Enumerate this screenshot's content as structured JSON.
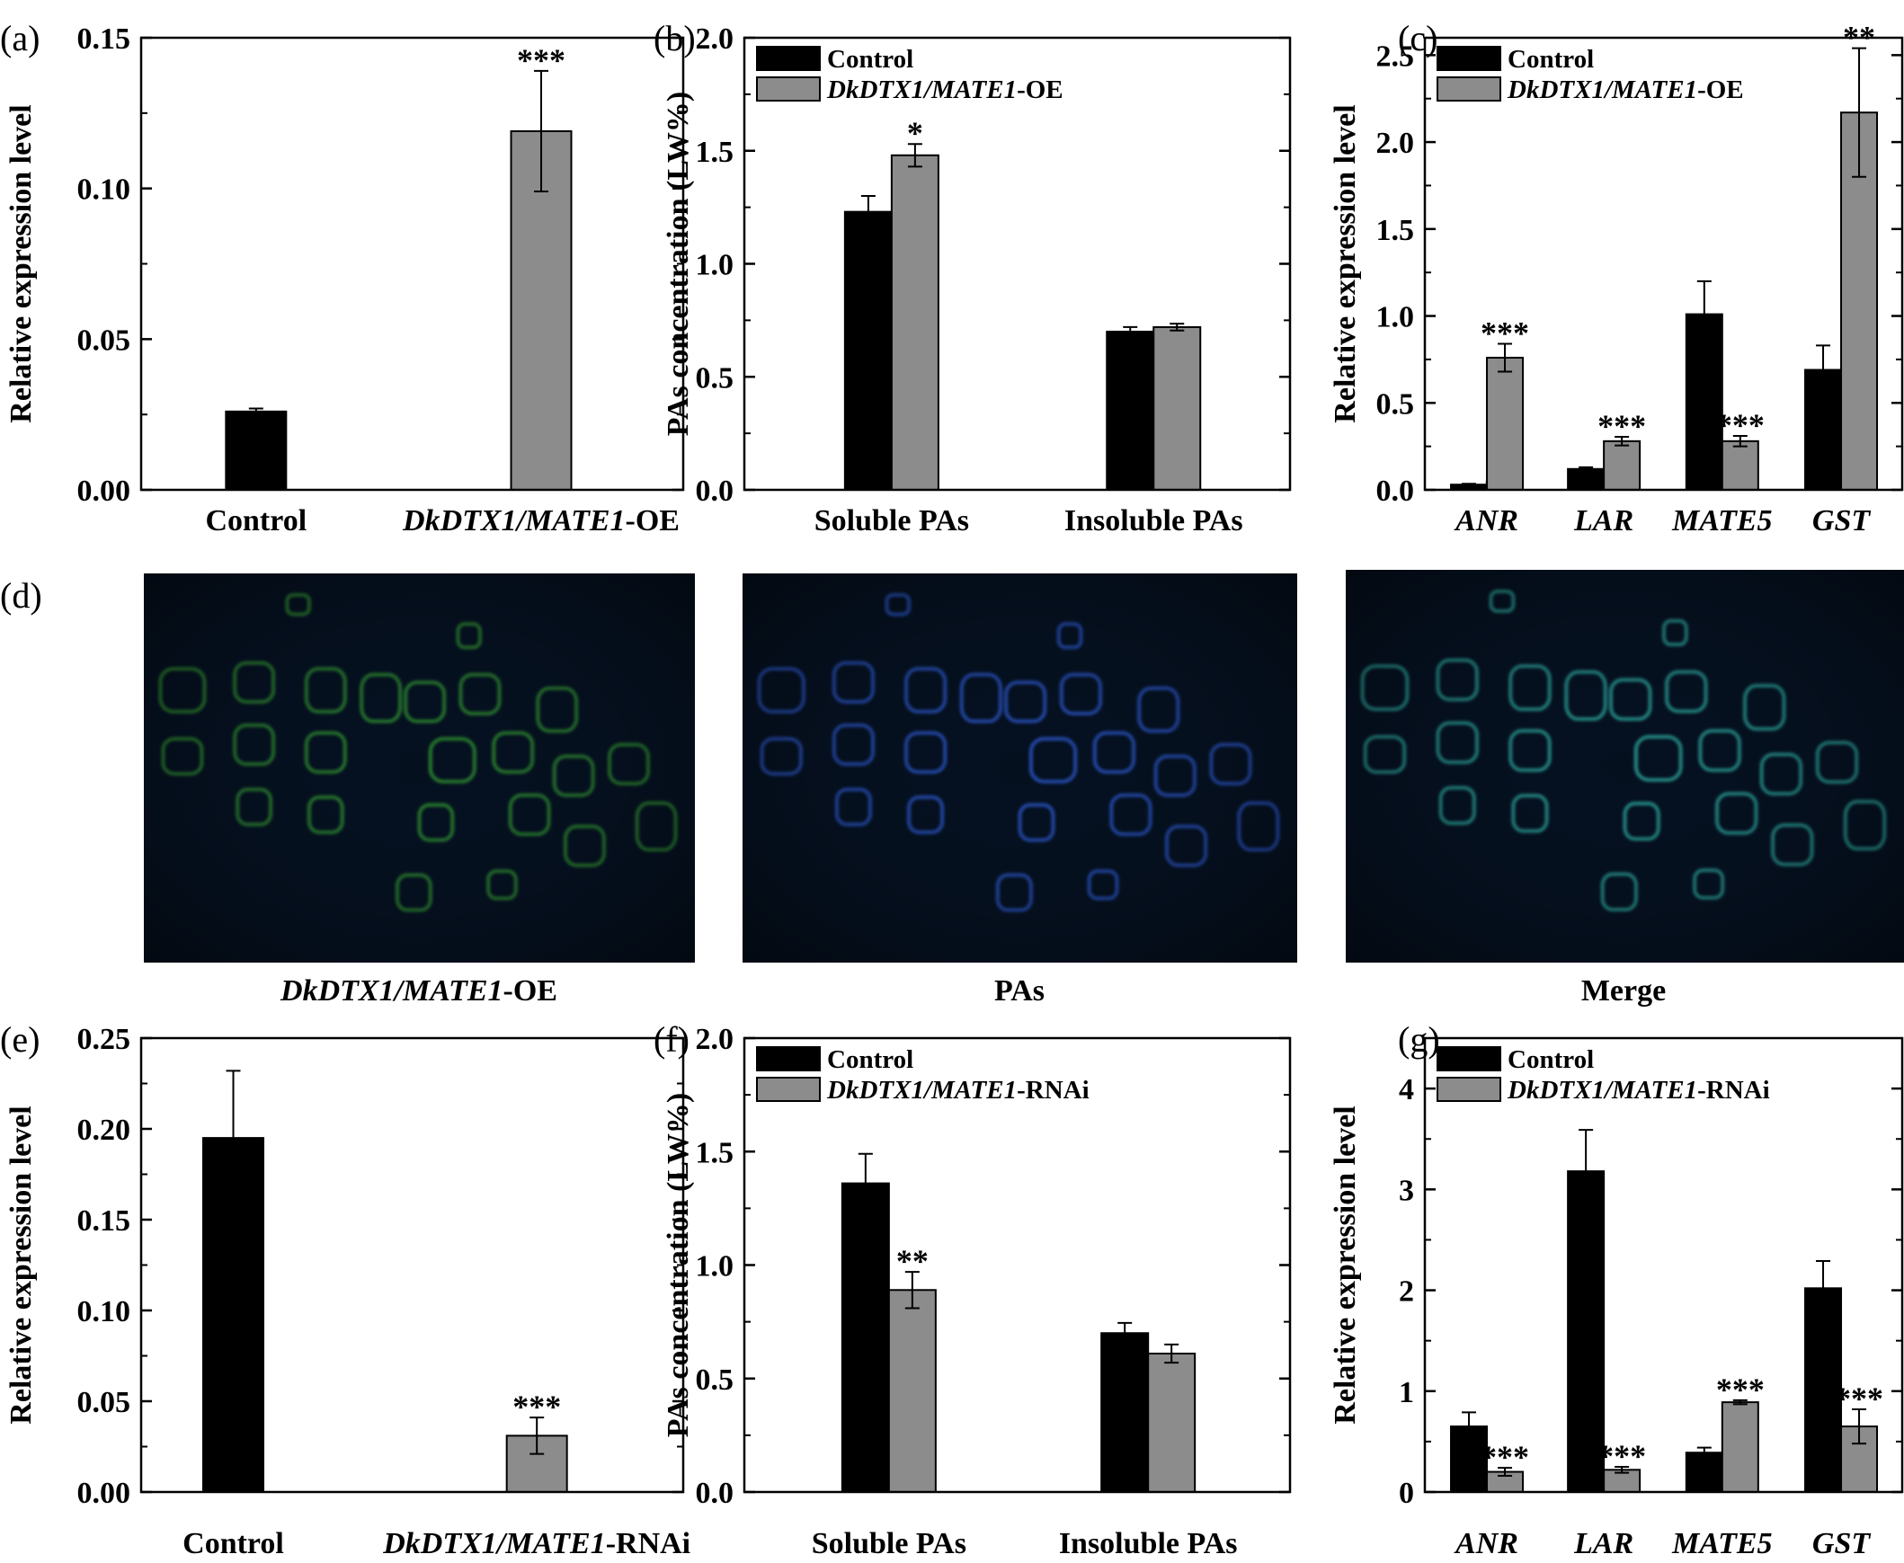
{
  "colors": {
    "control": "#000000",
    "treatment": "#8c8c8c",
    "axis": "#000000",
    "micro_bg": "#05101f",
    "micro_green": "#2e8f2e",
    "micro_blue": "#2a56c9",
    "micro_merge": "#2aa39a"
  },
  "chart_data": [
    {
      "panel": "(a)",
      "type": "bar",
      "ylabel": "Relative expression level",
      "ylim": [
        0,
        0.15
      ],
      "yticks": [
        "0.00",
        "0.05",
        "0.10",
        "0.15"
      ],
      "categories": [
        {
          "label": "Control"
        },
        {
          "label_italic": "DkDTX1/MATE1",
          "label_suffix": "-OE"
        }
      ],
      "series": [
        {
          "values": [
            0.026,
            0.119
          ],
          "errors": [
            0.001,
            0.02
          ],
          "significance": [
            "",
            "***"
          ],
          "color_by_category": [
            "#000000",
            "#8c8c8c"
          ]
        }
      ],
      "legend": null
    },
    {
      "panel": "(b)",
      "type": "bar",
      "ylabel": "PAs concentration (LW%)",
      "ylim": [
        0,
        2.0
      ],
      "yticks": [
        "0.0",
        "0.5",
        "1.0",
        "1.5",
        "2.0"
      ],
      "categories": [
        {
          "label": "Soluble PAs"
        },
        {
          "label": "Insoluble PAs"
        }
      ],
      "series": [
        {
          "name": "Control",
          "values": [
            1.23,
            0.7
          ],
          "errors": [
            0.07,
            0.02
          ],
          "significance": [
            "",
            ""
          ]
        },
        {
          "name_italic": "DkDTX1/MATE1",
          "name_suffix": "-OE",
          "values": [
            1.48,
            0.72
          ],
          "errors": [
            0.05,
            0.015
          ],
          "significance": [
            "*",
            ""
          ]
        }
      ],
      "legend": "top-left"
    },
    {
      "panel": "(c)",
      "type": "bar",
      "ylabel": "Relative expression level",
      "ylim": [
        0,
        2.6
      ],
      "yticks": [
        "0.0",
        "0.5",
        "1.0",
        "1.5",
        "2.0",
        "2.5"
      ],
      "categories": [
        {
          "label_italic": "ANR"
        },
        {
          "label_italic": "LAR"
        },
        {
          "label_italic": "MATE5"
        },
        {
          "label_italic": "GST"
        }
      ],
      "series": [
        {
          "name": "Control",
          "values": [
            0.03,
            0.12,
            1.01,
            0.69
          ],
          "errors": [
            0.005,
            0.01,
            0.19,
            0.14
          ],
          "significance": [
            "",
            "",
            "",
            ""
          ]
        },
        {
          "name_italic": "DkDTX1/MATE1",
          "name_suffix": "-OE",
          "values": [
            0.76,
            0.28,
            0.28,
            2.17
          ],
          "errors": [
            0.08,
            0.025,
            0.03,
            0.37
          ],
          "significance": [
            "***",
            "***",
            "***",
            "**"
          ]
        }
      ],
      "legend": "top-left"
    },
    {
      "panel": "(e)",
      "type": "bar",
      "ylabel": "Relative expression level",
      "ylim": [
        0,
        0.25
      ],
      "yticks": [
        "0.00",
        "0.05",
        "0.10",
        "0.15",
        "0.20",
        "0.25"
      ],
      "categories": [
        {
          "label": "Control"
        },
        {
          "label_italic": "DkDTX1/MATE1",
          "label_suffix": "-RNAi"
        }
      ],
      "series": [
        {
          "values": [
            0.195,
            0.031
          ],
          "errors": [
            0.037,
            0.01
          ],
          "significance": [
            "",
            "***"
          ],
          "color_by_category": [
            "#000000",
            "#8c8c8c"
          ]
        }
      ],
      "legend": null
    },
    {
      "panel": "(f)",
      "type": "bar",
      "ylabel": "PAs concentration (LW%)",
      "ylim": [
        0,
        2.0
      ],
      "yticks": [
        "0.0",
        "0.5",
        "1.0",
        "1.5",
        "2.0"
      ],
      "categories": [
        {
          "label": "Soluble PAs"
        },
        {
          "label": "Insoluble PAs"
        }
      ],
      "series": [
        {
          "name": "Control",
          "values": [
            1.36,
            0.7
          ],
          "errors": [
            0.13,
            0.045
          ],
          "significance": [
            "",
            ""
          ]
        },
        {
          "name_italic": "DkDTX1/MATE1",
          "name_suffix": "-RNAi",
          "values": [
            0.89,
            0.61
          ],
          "errors": [
            0.08,
            0.04
          ],
          "significance": [
            "**",
            ""
          ]
        }
      ],
      "legend": "top-left"
    },
    {
      "panel": "(g)",
      "type": "bar",
      "ylabel": "Relative expression level",
      "ylim": [
        0,
        4.5
      ],
      "yticks": [
        "0",
        "1",
        "2",
        "3",
        "4"
      ],
      "categories": [
        {
          "label_italic": "ANR"
        },
        {
          "label_italic": "LAR"
        },
        {
          "label_italic": "MATE5"
        },
        {
          "label_italic": "GST"
        }
      ],
      "series": [
        {
          "name": "Control",
          "values": [
            0.65,
            3.18,
            0.39,
            2.02
          ],
          "errors": [
            0.14,
            0.41,
            0.05,
            0.27
          ],
          "significance": [
            "",
            "",
            "",
            ""
          ]
        },
        {
          "name_italic": "DkDTX1/MATE1",
          "name_suffix": "-RNAi",
          "values": [
            0.2,
            0.22,
            0.89,
            0.65
          ],
          "errors": [
            0.04,
            0.03,
            0.02,
            0.17
          ],
          "significance": [
            "***",
            "***",
            "***",
            "***"
          ]
        }
      ],
      "legend": "top-left"
    }
  ],
  "micrographs": {
    "panel": "(d)",
    "images": [
      {
        "caption_italic": "DkDTX1/MATE1",
        "caption_suffix": "-OE",
        "channel": "green"
      },
      {
        "caption": "PAs",
        "channel": "blue"
      },
      {
        "caption": "Merge",
        "channel": "merge"
      }
    ]
  }
}
